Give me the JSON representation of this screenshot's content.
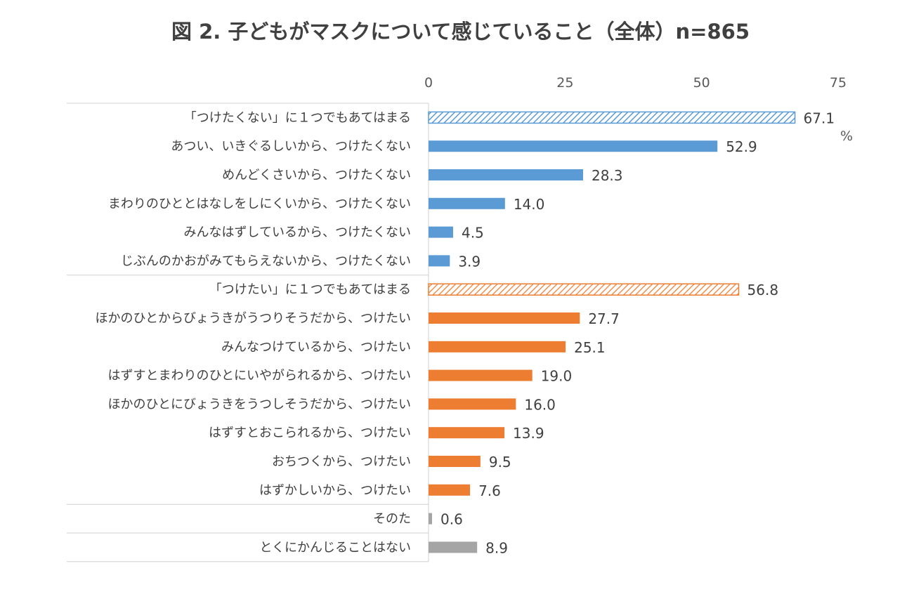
{
  "chart_data": {
    "type": "bar",
    "orientation": "horizontal",
    "title": "図 2.  子どもがマスクについて感じていること（全体）n=865",
    "unit": "%",
    "xlim": [
      0,
      75
    ],
    "xticks": [
      0,
      25,
      50,
      75
    ],
    "categories": [
      "「つけたくない」に１つでもあてはまる",
      "あつい、いきぐるしいから、つけたくない",
      "めんどくさいから、つけたくない",
      "まわりのひととはなしをしにくいから、つけたくない",
      "みんなはずしているから、つけたくない",
      "じぶんのかおがみてもらえないから、つけたくない",
      "「つけたい」に１つでもあてはまる",
      "ほかのひとからびょうきがうつりそうだから、つけたい",
      "みんなつけているから、つけたい",
      "はずすとまわりのひとにいやがられるから、つけたい",
      "ほかのひとにびょうきをうつしそうだから、つけたい",
      "はずすとおこられるから、つけたい",
      "おちつくから、つけたい",
      "はずかしいから、つけたい",
      "そのた",
      "とくにかんじることはない"
    ],
    "values": [
      67.1,
      52.9,
      28.3,
      14.0,
      4.5,
      3.9,
      56.8,
      27.7,
      25.1,
      19.0,
      16.0,
      13.9,
      9.5,
      7.6,
      0.6,
      8.9
    ],
    "value_labels": [
      "67.1",
      "52.9",
      "28.3",
      "14.0",
      "4.5",
      "3.9",
      "56.8",
      "27.7",
      "25.1",
      "19.0",
      "16.0",
      "13.9",
      "9.5",
      "7.6",
      "0.6",
      "8.9"
    ],
    "group": [
      "nowant",
      "nowant",
      "nowant",
      "nowant",
      "nowant",
      "nowant",
      "want",
      "want",
      "want",
      "want",
      "want",
      "want",
      "want",
      "want",
      "other",
      "other"
    ],
    "summary_rows": [
      0,
      6
    ],
    "group_colors": {
      "nowant": "#5b9bd5",
      "want": "#ed7d31",
      "other": "#a5a5a5"
    },
    "grid": false,
    "legend": "none"
  }
}
